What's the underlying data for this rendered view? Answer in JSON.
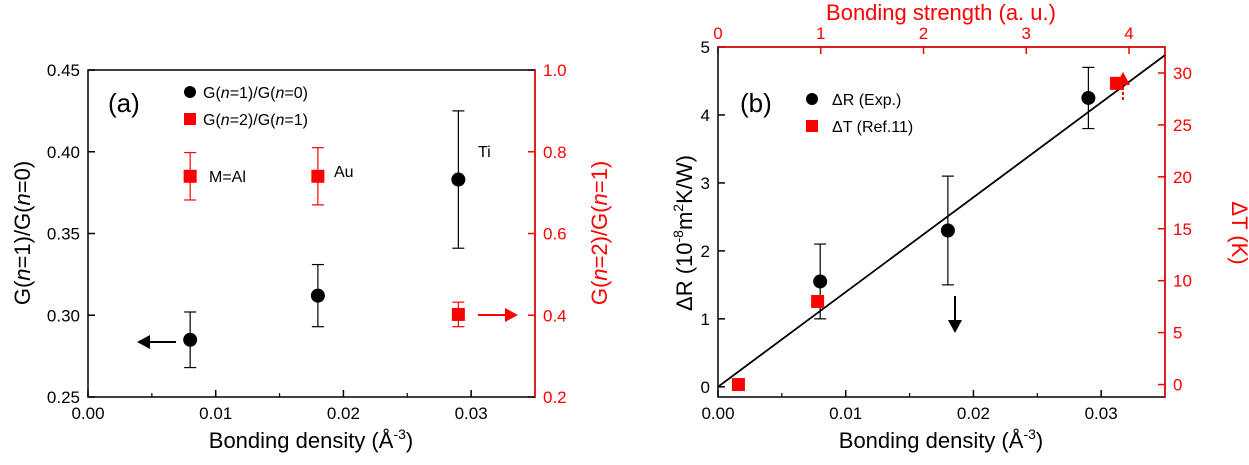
{
  "colors": {
    "black": "#000000",
    "red": "#ff0000",
    "line": "#000000"
  },
  "chart_data": [
    {
      "type": "scatter",
      "panel_label": "(a)",
      "xlabel_main": "Bonding density (Å",
      "xlabel_sup": "-3",
      "xlabel_end": ")",
      "xlim": [
        0.0,
        0.035
      ],
      "xticks": [
        "0.00",
        "0.01",
        "0.02",
        "0.03"
      ],
      "xtick_values": [
        0.0,
        0.01,
        0.02,
        0.03
      ],
      "ylabel_left": "G(n=1)/G(n=0)",
      "ylim_left": [
        0.25,
        0.45
      ],
      "yticks_left": [
        "0.25",
        "0.30",
        "0.35",
        "0.40",
        "0.45"
      ],
      "ytick_values_left": [
        0.25,
        0.3,
        0.35,
        0.4,
        0.45
      ],
      "ylabel_right": "G(n=2)/G(n=1)",
      "ylim_right": [
        0.2,
        1.0
      ],
      "yticks_right": [
        "0.2",
        "0.4",
        "0.6",
        "0.8",
        "1.0"
      ],
      "ytick_values_right": [
        0.2,
        0.4,
        0.6,
        0.8,
        1.0
      ],
      "legend": [
        "G(n=1)/G(n=0)",
        "G(n=2)/G(n=1)"
      ],
      "legend_position": "top-left",
      "series": [
        {
          "name": "G(n=1)/G(n=0)",
          "axis": "left",
          "marker": "circle",
          "color": "#000000",
          "x": [
            0.008,
            0.018,
            0.029
          ],
          "y": [
            0.285,
            0.312,
            0.383
          ],
          "err": [
            0.017,
            0.019,
            0.042
          ]
        },
        {
          "name": "G(n=2)/G(n=1)",
          "axis": "right",
          "marker": "square",
          "color": "#ff0000",
          "x": [
            0.008,
            0.018,
            0.029
          ],
          "y": [
            0.74,
            0.74,
            0.402
          ],
          "err": [
            0.058,
            0.07,
            0.03
          ]
        }
      ],
      "annotations": [
        "M=Al",
        "Au",
        "Ti"
      ]
    },
    {
      "type": "scatter",
      "panel_label": "(b)",
      "xlabel_main": "Bonding density (Å",
      "xlabel_sup": "-3",
      "xlabel_end": ")",
      "xlim": [
        0.0,
        0.035
      ],
      "xticks": [
        "0.00",
        "0.01",
        "0.02",
        "0.03"
      ],
      "xtick_values": [
        0.0,
        0.01,
        0.02,
        0.03
      ],
      "x2label": "Bonding strength (a. u.)",
      "x2lim": [
        0.0,
        4.35
      ],
      "x2ticks": [
        "0",
        "1",
        "2",
        "3",
        "4"
      ],
      "x2tick_values": [
        0,
        1,
        2,
        3,
        4
      ],
      "ylabel_left_main": "ΔR (10",
      "ylabel_left_sup1": "-8",
      "ylabel_left_mid": "m",
      "ylabel_left_sup2": "2",
      "ylabel_left_end": "K/W)",
      "ylim_left": [
        -0.15,
        5.0
      ],
      "yticks_left": [
        "0",
        "1",
        "2",
        "3",
        "4",
        "5"
      ],
      "ytick_values_left": [
        0,
        1,
        2,
        3,
        4,
        5
      ],
      "ylabel_right": "ΔT (K)",
      "ylim_right": [
        -1.2,
        32.5
      ],
      "yticks_right": [
        "0",
        "5",
        "10",
        "15",
        "20",
        "25",
        "30"
      ],
      "ytick_values_right": [
        0,
        5,
        10,
        15,
        20,
        25,
        30
      ],
      "legend": [
        "ΔR (Exp.)",
        "ΔT (Ref.11)"
      ],
      "legend_position": "top-left",
      "series": [
        {
          "name": "ΔR (Exp.)",
          "axis": "left",
          "marker": "circle",
          "color": "#000000",
          "x": [
            0.008,
            0.018,
            0.029
          ],
          "y": [
            1.55,
            2.3,
            4.25
          ],
          "err": [
            0.55,
            0.8,
            0.45
          ]
        },
        {
          "name": "ΔT (Ref.11)",
          "axis": "right",
          "marker": "square",
          "color": "#ff0000",
          "x": [
            0.0016,
            0.0078,
            0.0312
          ],
          "y": [
            0.0,
            8.0,
            29.0
          ]
        }
      ],
      "fit_line": {
        "x": [
          0.0,
          0.035
        ],
        "y": [
          0.0,
          4.88
        ]
      }
    }
  ]
}
